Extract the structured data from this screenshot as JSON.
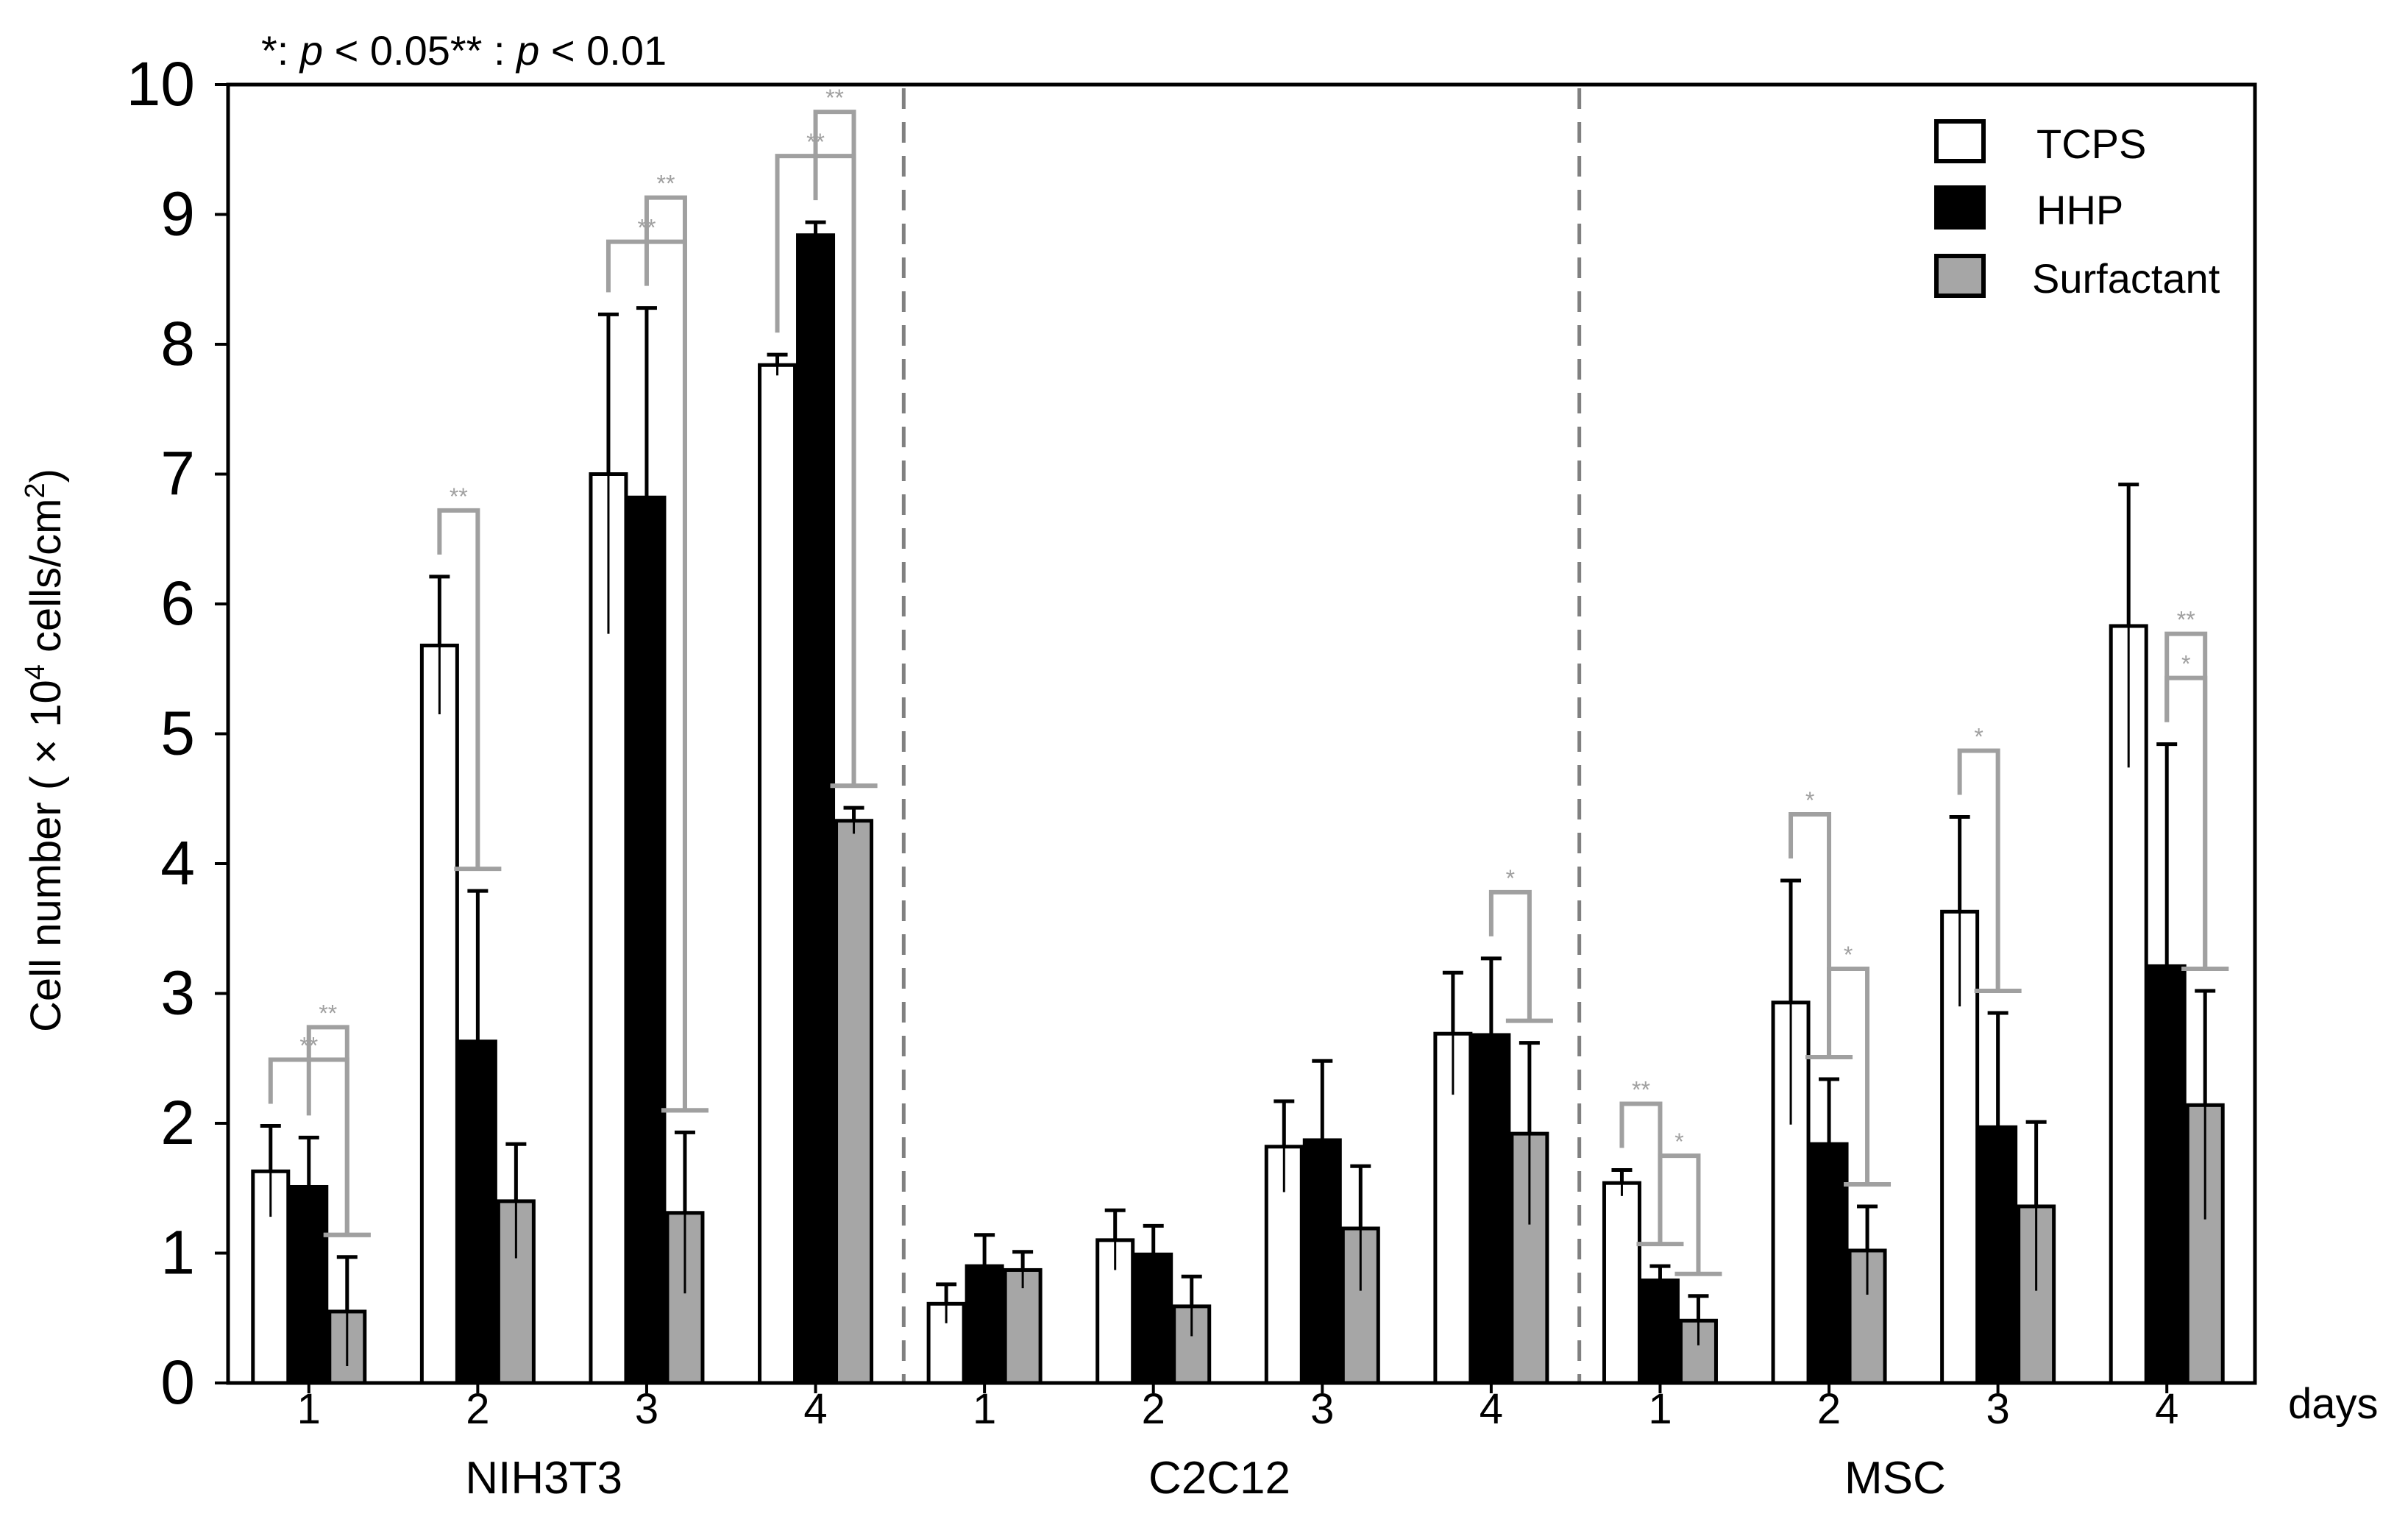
{
  "chart_data": {
    "type": "bar",
    "title": "",
    "significance_note": "*: p < 0.05** : p < 0.01",
    "note_parts": {
      "a": "*: ",
      "b": "p",
      "c": " < 0.05** : ",
      "d": "p",
      "e": " < 0.01"
    },
    "ylabel": "Cell number ( × 10⁴ cells/cm²)",
    "ylabel_parts": {
      "pre": "Cell number ( × 10",
      "sup1": "4",
      "mid": " cells/cm",
      "sup2": "2",
      "post": ")"
    },
    "xlabel": "days",
    "ylim": [
      0,
      10
    ],
    "yticks": [
      0,
      1,
      2,
      3,
      4,
      5,
      6,
      7,
      8,
      9,
      10
    ],
    "grid": false,
    "legend_position": "top-right",
    "series": [
      {
        "name": "TCPS",
        "color": "#ffffff"
      },
      {
        "name": "HHP",
        "color": "#000000"
      },
      {
        "name": "Surfactant",
        "color": "#a6a6a6"
      }
    ],
    "groups": [
      {
        "name": "NIH3T3",
        "days": [
          {
            "day": "1",
            "values": [
              1.63,
              1.51,
              0.55
            ],
            "errors": [
              0.35,
              0.38,
              0.42
            ]
          },
          {
            "day": "2",
            "values": [
              5.68,
              2.63,
              1.4
            ],
            "errors": [
              0.53,
              1.16,
              0.44
            ]
          },
          {
            "day": "3",
            "values": [
              7.0,
              6.82,
              1.31
            ],
            "errors": [
              1.23,
              1.46,
              0.62
            ]
          },
          {
            "day": "4",
            "values": [
              7.84,
              8.84,
              4.33
            ],
            "errors": [
              0.08,
              0.1,
              0.1
            ]
          }
        ]
      },
      {
        "name": "C2C12",
        "days": [
          {
            "day": "1",
            "values": [
              0.61,
              0.9,
              0.87
            ],
            "errors": [
              0.15,
              0.24,
              0.14
            ]
          },
          {
            "day": "2",
            "values": [
              1.1,
              0.99,
              0.59
            ],
            "errors": [
              0.23,
              0.22,
              0.23
            ]
          },
          {
            "day": "3",
            "values": [
              1.82,
              1.87,
              1.19
            ],
            "errors": [
              0.35,
              0.61,
              0.48
            ]
          },
          {
            "day": "4",
            "values": [
              2.69,
              2.68,
              1.92
            ],
            "errors": [
              0.47,
              0.59,
              0.7
            ]
          }
        ]
      },
      {
        "name": "MSC",
        "days": [
          {
            "day": "1",
            "values": [
              1.54,
              0.79,
              0.48
            ],
            "errors": [
              0.1,
              0.11,
              0.19
            ]
          },
          {
            "day": "2",
            "values": [
              2.93,
              1.84,
              1.02
            ],
            "errors": [
              0.94,
              0.5,
              0.34
            ]
          },
          {
            "day": "3",
            "values": [
              3.63,
              1.97,
              1.36
            ],
            "errors": [
              0.73,
              0.88,
              0.65
            ]
          },
          {
            "day": "4",
            "values": [
              5.83,
              3.21,
              2.14
            ],
            "errors": [
              1.09,
              1.71,
              0.88
            ]
          }
        ]
      }
    ],
    "significance": [
      {
        "group": 0,
        "day": 0,
        "from": 0,
        "to": 2,
        "label": "**"
      },
      {
        "group": 0,
        "day": 0,
        "from": 1,
        "to": 2,
        "label": "**"
      },
      {
        "group": 0,
        "day": 1,
        "from": 0,
        "to": 1,
        "label": "**"
      },
      {
        "group": 0,
        "day": 2,
        "from": 0,
        "to": 2,
        "label": "**"
      },
      {
        "group": 0,
        "day": 2,
        "from": 1,
        "to": 2,
        "label": "**"
      },
      {
        "group": 0,
        "day": 3,
        "from": 0,
        "to": 2,
        "label": "**"
      },
      {
        "group": 0,
        "day": 3,
        "from": 1,
        "to": 2,
        "label": "**"
      },
      {
        "group": 1,
        "day": 3,
        "from": 1,
        "to": 2,
        "label": "*"
      },
      {
        "group": 2,
        "day": 0,
        "from": 0,
        "to": 1,
        "label": "**"
      },
      {
        "group": 2,
        "day": 0,
        "from": 1,
        "to": 2,
        "label": "*"
      },
      {
        "group": 2,
        "day": 1,
        "from": 0,
        "to": 1,
        "label": "*"
      },
      {
        "group": 2,
        "day": 1,
        "from": 1,
        "to": 2,
        "label": "*"
      },
      {
        "group": 2,
        "day": 2,
        "from": 0,
        "to": 1,
        "label": "*"
      },
      {
        "group": 2,
        "day": 3,
        "from": 1,
        "to": 2,
        "label": "*"
      },
      {
        "group": 2,
        "day": 3,
        "from": 1,
        "to": 2,
        "label": "**"
      }
    ]
  }
}
